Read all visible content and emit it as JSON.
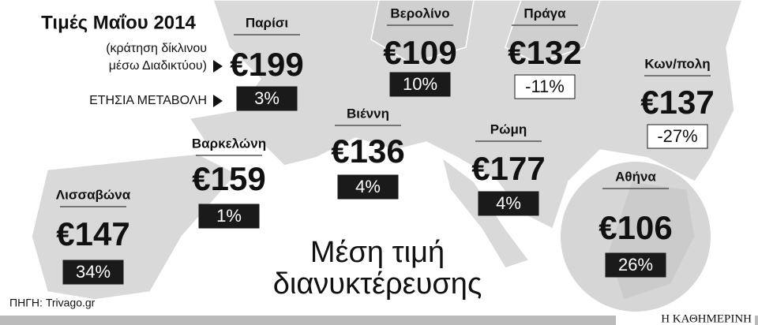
{
  "header": {
    "title": "Τιμές Μαΐου 2014",
    "subtitle_lines": [
      "(κράτηση δίκλινου",
      "μέσω Διαδικτύου)"
    ],
    "change_label": "ΕΤΗΣΙΑ ΜΕΤΑΒΟΛΗ"
  },
  "cities": [
    {
      "name": "Παρίσι",
      "price": "€199",
      "change": "3%"
    },
    {
      "name": "Βερολίνο",
      "price": "€109",
      "change": "10%"
    },
    {
      "name": "Πράγα",
      "price": "€132",
      "change": "-11%"
    },
    {
      "name": "Κων/πολη",
      "price": "€137",
      "change": "-27%"
    },
    {
      "name": "Βιέννη",
      "price": "€136",
      "change": "4%"
    },
    {
      "name": "Ρώμη",
      "price": "€177",
      "change": "4%"
    },
    {
      "name": "Βαρκελώνη",
      "price": "€159",
      "change": "1%"
    },
    {
      "name": "Λισσαβώνα",
      "price": "€147",
      "change": "34%"
    },
    {
      "name": "Αθήνα",
      "price": "€106",
      "change": "26%"
    }
  ],
  "center_title_lines": [
    "Μέση τιμή",
    "διανυκτέρευσης"
  ],
  "source": "ΠΗΓΗ: Trivago.gr",
  "publisher": "Η ΚΑΘΗΜΕΡΙΝΗ"
}
